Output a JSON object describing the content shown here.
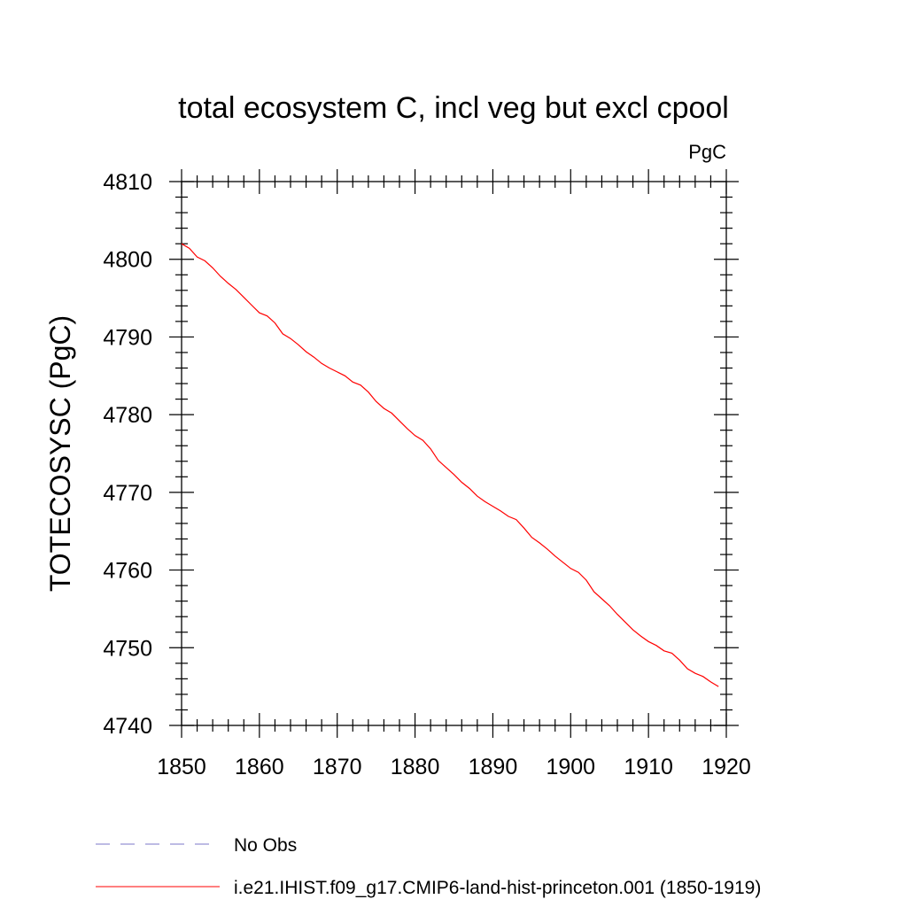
{
  "chart_data": {
    "type": "line",
    "title": "total ecosystem C, incl veg but excl cpool",
    "units_label": "PgC",
    "xlabel": "",
    "ylabel": "TOTECOSYSC  (PgC)",
    "xlim": [
      1850,
      1920
    ],
    "ylim": [
      4740,
      4810
    ],
    "x_ticks": [
      "1850",
      "1860",
      "1870",
      "1880",
      "1890",
      "1900",
      "1910",
      "1920"
    ],
    "y_ticks": [
      "4740",
      "4750",
      "4760",
      "4770",
      "4780",
      "4790",
      "4800",
      "4810"
    ],
    "grid": false,
    "legend_position": "bottom-left",
    "series": [
      {
        "name": "i.e21.IHIST.f09_g17.CMIP6-land-hist-princeton.001 (1850-1919)",
        "color": "#ff0000",
        "style": "solid",
        "x": [
          1850,
          1851,
          1852,
          1853,
          1854,
          1855,
          1856,
          1857,
          1858,
          1859,
          1860,
          1861,
          1862,
          1863,
          1864,
          1865,
          1866,
          1867,
          1868,
          1869,
          1870,
          1871,
          1872,
          1873,
          1874,
          1875,
          1876,
          1877,
          1878,
          1879,
          1880,
          1881,
          1882,
          1883,
          1884,
          1885,
          1886,
          1887,
          1888,
          1889,
          1890,
          1891,
          1892,
          1893,
          1894,
          1895,
          1896,
          1897,
          1898,
          1899,
          1900,
          1901,
          1902,
          1903,
          1904,
          1905,
          1906,
          1907,
          1908,
          1909,
          1910,
          1911,
          1912,
          1913,
          1914,
          1915,
          1916,
          1917,
          1918,
          1919
        ],
        "y": [
          4802.0,
          4801.4,
          4800.3,
          4799.8,
          4798.9,
          4797.8,
          4796.9,
          4796.1,
          4795.1,
          4794.1,
          4793.1,
          4792.7,
          4791.8,
          4790.4,
          4789.8,
          4789.0,
          4788.1,
          4787.4,
          4786.6,
          4786.0,
          4785.5,
          4785.0,
          4784.2,
          4783.8,
          4782.9,
          4781.7,
          4780.8,
          4780.2,
          4779.2,
          4778.2,
          4777.3,
          4776.7,
          4775.6,
          4774.1,
          4773.2,
          4772.3,
          4771.3,
          4770.5,
          4769.5,
          4768.8,
          4768.2,
          4767.6,
          4766.9,
          4766.5,
          4765.4,
          4764.2,
          4763.5,
          4762.7,
          4761.8,
          4761.0,
          4760.2,
          4759.7,
          4758.7,
          4757.2,
          4756.3,
          4755.4,
          4754.3,
          4753.3,
          4752.3,
          4751.5,
          4750.8,
          4750.3,
          4749.6,
          4749.3,
          4748.4,
          4747.3,
          4746.7,
          4746.3,
          4745.6,
          4745.0
        ]
      }
    ],
    "legend": [
      {
        "label": "No Obs",
        "color": "#7b77c9",
        "style": "dashed"
      },
      {
        "label": "i.e21.IHIST.f09_g17.CMIP6-land-hist-princeton.001 (1850-1919)",
        "color": "#ff0000",
        "style": "solid"
      }
    ]
  }
}
